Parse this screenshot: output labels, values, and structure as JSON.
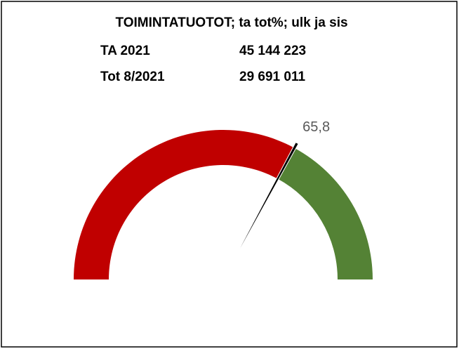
{
  "chart_data": {
    "type": "gauge",
    "title": "TOIMINTATUOTOT; ta tot%; ulk ja sis",
    "rows": [
      {
        "label": "TA 2021",
        "value": "45 144 223"
      },
      {
        "label": "Tot 8/2021",
        "value": "29 691 011"
      }
    ],
    "value": 65.8,
    "value_labels": "65,8",
    "ylim": [
      0,
      100
    ],
    "colors": [
      "#c00000",
      "#548235"
    ]
  }
}
